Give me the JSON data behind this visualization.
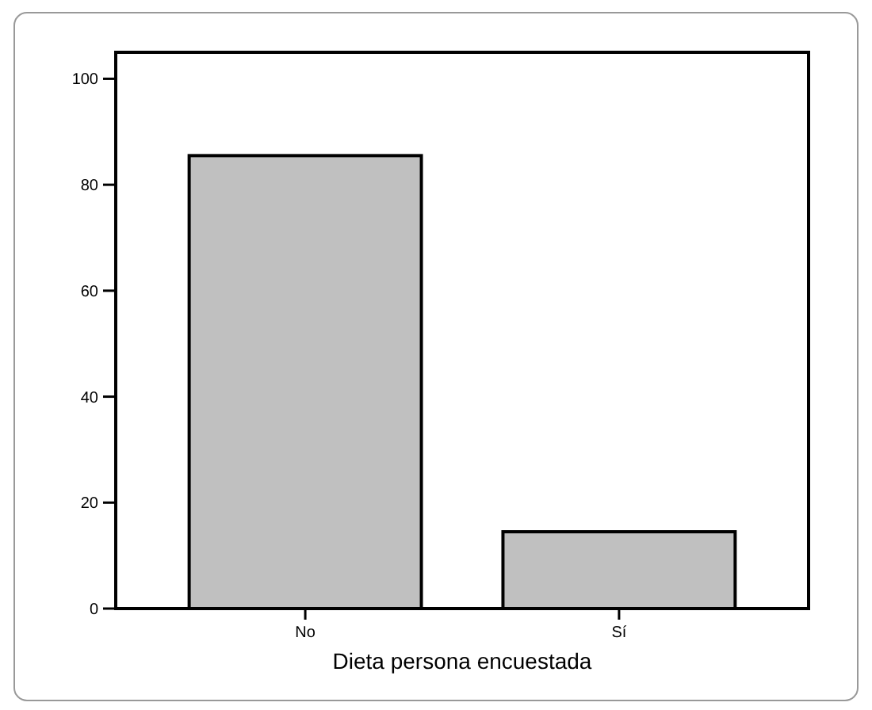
{
  "chart_data": {
    "type": "bar",
    "xlabel": "Dieta persona encuestada",
    "categories": [
      "No",
      "Sí"
    ],
    "values": [
      85.5,
      14.5
    ],
    "color": "#c0c0c0",
    "ylim": [
      0,
      105
    ],
    "yticks": [
      0,
      20,
      40,
      60,
      80,
      100
    ],
    "grid": false
  }
}
